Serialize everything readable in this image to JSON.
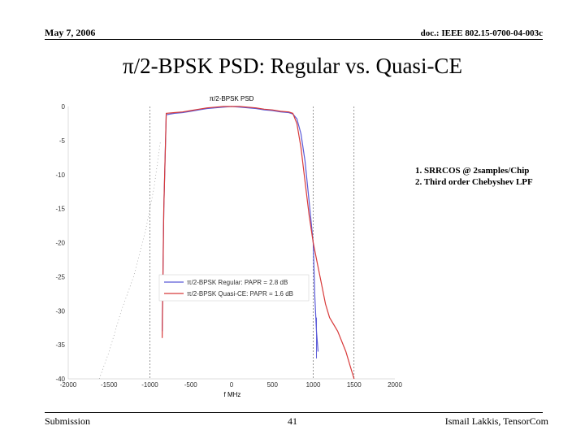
{
  "header": {
    "date": "May 7, 2006",
    "doc": "doc.: IEEE 802.15-0700-04-003c"
  },
  "slide": {
    "title": "π/2-BPSK PSD: Regular vs. Quasi-CE",
    "notes": [
      "1. SRRCOS @ 2samples/Chip",
      "2. Third order Chebyshev LPF"
    ]
  },
  "footer": {
    "left": "Submission",
    "page": "41",
    "right": "Ismail Lakkis, TensorCom"
  },
  "chart_data": {
    "type": "line",
    "title": "π/2-BPSK PSD",
    "xlabel": "f MHz",
    "ylabel": "",
    "xlim": [
      -2000,
      2000
    ],
    "ylim": [
      -40,
      0
    ],
    "xticks": [
      -2000,
      -1500,
      -1000,
      -500,
      0,
      500,
      1000,
      1500,
      2000
    ],
    "yticks": [
      0,
      -5,
      -10,
      -15,
      -20,
      -25,
      -30,
      -35,
      -40
    ],
    "grid": "vertical dashed lines at ±1000 and 1500",
    "legend_position": "lower-left",
    "colors": {
      "regular": "#5a5ad8",
      "quasi": "#d83a3a",
      "side": "#9a9a9a"
    },
    "series": [
      {
        "name": "π/2-BPSK Regular: PAPR = 2.8 dB",
        "x": [
          -850,
          -830,
          -800,
          -700,
          -600,
          -500,
          -400,
          -300,
          -200,
          -100,
          0,
          100,
          200,
          300,
          400,
          500,
          600,
          700,
          750,
          800,
          850,
          900,
          950,
          1000,
          1020,
          1040,
          1060
        ],
        "y": [
          -33,
          -15,
          -1.2,
          -1.0,
          -0.9,
          -0.7,
          -0.5,
          -0.3,
          -0.2,
          -0.1,
          0,
          -0.1,
          -0.2,
          -0.3,
          -0.5,
          -0.6,
          -0.8,
          -0.9,
          -1.1,
          -1.8,
          -4,
          -8,
          -14,
          -20,
          -28,
          -33,
          -36
        ]
      },
      {
        "name": "π/2-BPSK Quasi-CE: PAPR = 1.6 dB",
        "x": [
          -850,
          -830,
          -800,
          -700,
          -600,
          -500,
          -400,
          -300,
          -200,
          -100,
          0,
          100,
          200,
          300,
          400,
          500,
          600,
          700,
          750,
          800,
          850,
          900,
          950,
          1000,
          1050,
          1100,
          1150,
          1200,
          1300,
          1400,
          1450,
          1500
        ],
        "y": [
          -34,
          -15,
          -1.0,
          -0.9,
          -0.8,
          -0.6,
          -0.4,
          -0.2,
          -0.1,
          0,
          0,
          0,
          -0.1,
          -0.2,
          -0.4,
          -0.5,
          -0.7,
          -0.8,
          -1.0,
          -2.5,
          -6,
          -11,
          -16,
          -20,
          -23,
          -26,
          -29,
          -31,
          -33,
          -36,
          -38,
          -40
        ]
      }
    ]
  }
}
